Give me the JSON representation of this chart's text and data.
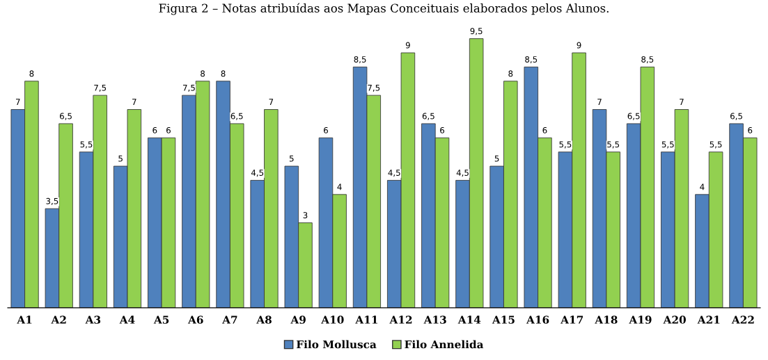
{
  "chart_data": {
    "type": "bar",
    "title": "Figura 2 – Notas atribuídas aos Mapas Conceituais elaborados pelos Alunos.",
    "categories": [
      "A1",
      "A2",
      "A3",
      "A4",
      "A5",
      "A6",
      "A7",
      "A8",
      "A9",
      "A10",
      "A11",
      "A12",
      "A13",
      "A14",
      "A15",
      "A16",
      "A17",
      "A18",
      "A19",
      "A20",
      "A21",
      "A22"
    ],
    "series": [
      {
        "name": "Filo Mollusca",
        "color": "#4f81bd",
        "values": [
          7,
          3.5,
          5.5,
          5,
          6,
          7.5,
          8,
          4.5,
          5,
          6,
          8.5,
          4.5,
          6.5,
          4.5,
          5,
          8.5,
          5.5,
          7,
          6.5,
          5.5,
          4,
          6.5
        ],
        "value_labels": [
          "7",
          "3,5",
          "5,5",
          "5",
          "6",
          "7,5",
          "8",
          "4,5",
          "5",
          "6",
          "8,5",
          "4,5",
          "6,5",
          "4,5",
          "5",
          "8,5",
          "5,5",
          "7",
          "6,5",
          "5,5",
          "4",
          "6,5"
        ]
      },
      {
        "name": "Filo Annelida",
        "color": "#92d050",
        "values": [
          8,
          6.5,
          7.5,
          7,
          6,
          8,
          6.5,
          7,
          3,
          4,
          7.5,
          9,
          6,
          9.5,
          8,
          6,
          9,
          5.5,
          8.5,
          7,
          5.5,
          6
        ],
        "value_labels": [
          "8",
          "6,5",
          "7,5",
          "7",
          "6",
          "8",
          "6,5",
          "7",
          "3",
          "4",
          "7,5",
          "9",
          "6",
          "9,5",
          "8",
          "6",
          "9",
          "5,5",
          "8,5",
          "7",
          "5,5",
          "6"
        ]
      }
    ],
    "legend": "bottom",
    "grid": false
  }
}
